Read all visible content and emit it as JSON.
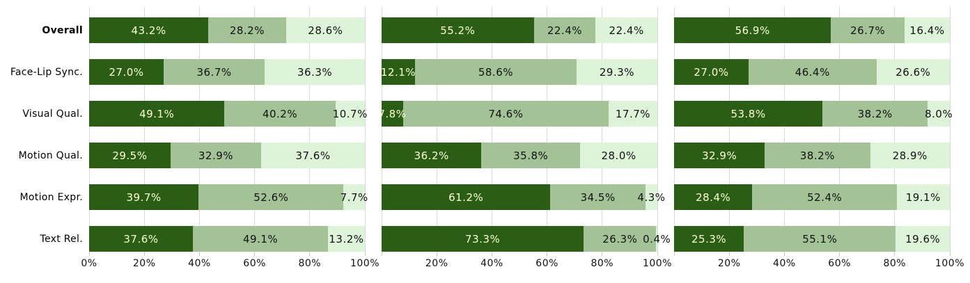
{
  "chart_data": {
    "type": "bar",
    "orientation": "horizontal",
    "stacked": true,
    "stacked_to_100": true,
    "title": "",
    "xlabel": "",
    "ylabel": "",
    "xlim": [
      0,
      100
    ],
    "grid": true,
    "legend": "none",
    "categories": [
      "Overall",
      "Face-Lip Sync.",
      "Visual Qual.",
      "Motion Qual.",
      "Motion Expr.",
      "Text Rel."
    ],
    "bold_category": "Overall",
    "series_names": [
      "dark-green-segment",
      "medium-green-segment",
      "light-green-segment"
    ],
    "segment_colors": [
      "#2a5e15",
      "#a3c295",
      "#def4d9"
    ],
    "segment_label_colors": [
      "#ffffd9",
      "#111111",
      "#111111"
    ],
    "value_suffix": "%",
    "xtick_positions": [
      0,
      20,
      40,
      60,
      80,
      100
    ],
    "panels": [
      {
        "tick_labels": [
          "0%",
          "20%",
          "40%",
          "60%",
          "80%",
          "100%"
        ],
        "series": [
          {
            "name": "dark-green-segment",
            "values": [
              43.2,
              27.0,
              49.1,
              29.5,
              39.7,
              37.6
            ]
          },
          {
            "name": "medium-green-segment",
            "values": [
              28.2,
              36.7,
              40.2,
              32.9,
              52.6,
              49.1
            ]
          },
          {
            "name": "light-green-segment",
            "values": [
              28.6,
              36.3,
              10.7,
              37.6,
              7.7,
              13.2
            ]
          }
        ]
      },
      {
        "tick_labels": [
          "",
          "20%",
          "40%",
          "60%",
          "80%",
          "100%"
        ],
        "series": [
          {
            "name": "dark-green-segment",
            "values": [
              55.2,
              12.1,
              7.8,
              36.2,
              61.2,
              73.3
            ]
          },
          {
            "name": "medium-green-segment",
            "values": [
              22.4,
              58.6,
              74.6,
              35.8,
              34.5,
              26.3
            ]
          },
          {
            "name": "light-green-segment",
            "values": [
              22.4,
              29.3,
              17.7,
              28.0,
              4.3,
              0.4
            ]
          }
        ]
      },
      {
        "tick_labels": [
          "",
          "20%",
          "40%",
          "60%",
          "80%",
          "100%"
        ],
        "series": [
          {
            "name": "dark-green-segment",
            "values": [
              56.9,
              27.0,
              53.8,
              32.9,
              28.4,
              25.3
            ]
          },
          {
            "name": "medium-green-segment",
            "values": [
              26.7,
              46.4,
              38.2,
              38.2,
              52.4,
              55.1
            ]
          },
          {
            "name": "light-green-segment",
            "values": [
              16.4,
              26.6,
              8.0,
              28.9,
              19.1,
              19.6
            ]
          }
        ]
      }
    ]
  },
  "layout_colors": {
    "background": "#ffffff",
    "gridline": "#d9d9d9",
    "tick": "#c8c8c8",
    "category_text": "#000000"
  }
}
